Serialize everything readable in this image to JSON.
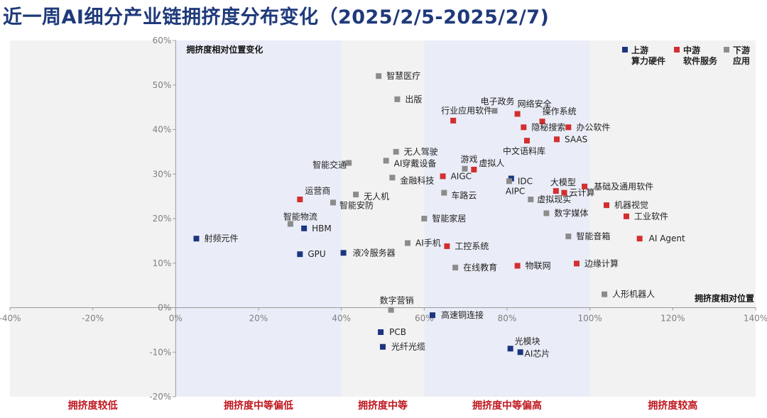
{
  "title": "近一周AI细分产业链拥挤度分布变化（2025/2/5-2025/2/7)",
  "chart_data": {
    "type": "scatter",
    "title": "近一周AI细分产业链拥挤度分布变化（2025/2/5-2025/2/7)",
    "ylabel": "拥挤度相对位置变化",
    "xlabel": "拥挤度相对位置",
    "xlim": [
      -0.4,
      1.4
    ],
    "ylim": [
      -0.2,
      0.6
    ],
    "x_ticks": [
      "-40%",
      "-20%",
      "0%",
      "20%",
      "40%",
      "60%",
      "80%",
      "100%",
      "120%",
      "140%"
    ],
    "y_ticks": [
      "-20%",
      "-10%",
      "0%",
      "10%",
      "20%",
      "30%",
      "40%",
      "50%",
      "60%"
    ],
    "grid": false,
    "legend_position": "top-right",
    "bands": [
      {
        "label": "拥挤度较低",
        "x_range": [
          -0.4,
          0.0
        ],
        "color": "#f2f2f2"
      },
      {
        "label": "拥挤度中等偏低",
        "x_range": [
          0.0,
          0.4
        ],
        "color": "#eaedf7"
      },
      {
        "label": "拥挤度中等",
        "x_range": [
          0.4,
          0.6
        ],
        "color": "#f2f2f2"
      },
      {
        "label": "拥挤度中等偏高",
        "x_range": [
          0.6,
          1.0
        ],
        "color": "#eaedf7"
      },
      {
        "label": "拥挤度较高",
        "x_range": [
          1.0,
          1.4
        ],
        "color": "#f2f2f2"
      }
    ],
    "series": [
      {
        "name": "上游\n算力硬件",
        "color": "#1b3580",
        "points": [
          {
            "label": "射频元件",
            "x": 0.05,
            "y": 0.155
          },
          {
            "label": "HBM",
            "x": 0.31,
            "y": 0.178
          },
          {
            "label": "GPU",
            "x": 0.3,
            "y": 0.12
          },
          {
            "label": "液冷服务器",
            "x": 0.405,
            "y": 0.123
          },
          {
            "label": "高速铜连接",
            "x": 0.62,
            "y": -0.017
          },
          {
            "label": "PCB",
            "x": 0.495,
            "y": -0.055
          },
          {
            "label": "光纤光缆",
            "x": 0.5,
            "y": -0.088
          },
          {
            "label": "光模块",
            "x": 0.808,
            "y": -0.092
          },
          {
            "label": "AI芯片",
            "x": 0.832,
            "y": -0.1
          },
          {
            "label": "IDC",
            "x": 0.81,
            "y": 0.29
          }
        ]
      },
      {
        "name": "中游\n软件服务",
        "color": "#d32f2f",
        "points": [
          {
            "label": "运营商",
            "x": 0.3,
            "y": 0.243
          },
          {
            "label": "AIGC",
            "x": 0.645,
            "y": 0.295
          },
          {
            "label": "虚拟人",
            "x": 0.72,
            "y": 0.31
          },
          {
            "label": "工控系统",
            "x": 0.655,
            "y": 0.138
          },
          {
            "label": "物联网",
            "x": 0.825,
            "y": 0.094
          },
          {
            "label": "行业应用软件",
            "x": 0.67,
            "y": 0.42
          },
          {
            "label": "网络安全",
            "x": 0.825,
            "y": 0.435
          },
          {
            "label": "操作系统",
            "x": 0.885,
            "y": 0.418
          },
          {
            "label": "隐秘搜索",
            "x": 0.84,
            "y": 0.405
          },
          {
            "label": "办公软件",
            "x": 0.948,
            "y": 0.405
          },
          {
            "label": "中文语料库",
            "x": 0.848,
            "y": 0.375
          },
          {
            "label": "SAAS",
            "x": 0.92,
            "y": 0.378
          },
          {
            "label": "大模型",
            "x": 0.918,
            "y": 0.262
          },
          {
            "label": "云计算",
            "x": 0.938,
            "y": 0.258
          },
          {
            "label": "基础及通用软件",
            "x": 0.987,
            "y": 0.272
          },
          {
            "label": "机器视觉",
            "x": 1.04,
            "y": 0.23
          },
          {
            "label": "工业软件",
            "x": 1.088,
            "y": 0.205
          },
          {
            "label": "AI Agent",
            "x": 1.12,
            "y": 0.155
          },
          {
            "label": "边缘计算",
            "x": 0.968,
            "y": 0.099
          }
        ]
      },
      {
        "name": "下游\n应用",
        "color": "#8c8c8c",
        "points": [
          {
            "label": "智慧医疗",
            "x": 0.49,
            "y": 0.52
          },
          {
            "label": "出版",
            "x": 0.535,
            "y": 0.468
          },
          {
            "label": "无人驾驶",
            "x": 0.532,
            "y": 0.35
          },
          {
            "label": "AI穿戴设备",
            "x": 0.508,
            "y": 0.33
          },
          {
            "label": "智能交通",
            "x": 0.418,
            "y": 0.325
          },
          {
            "label": "金融科技",
            "x": 0.523,
            "y": 0.292
          },
          {
            "label": "无人机",
            "x": 0.435,
            "y": 0.254
          },
          {
            "label": "智能安防",
            "x": 0.38,
            "y": 0.236
          },
          {
            "label": "智能物流",
            "x": 0.277,
            "y": 0.188
          },
          {
            "label": "智能家居",
            "x": 0.6,
            "y": 0.2
          },
          {
            "label": "AI手机",
            "x": 0.56,
            "y": 0.145
          },
          {
            "label": "在线教育",
            "x": 0.675,
            "y": 0.09
          },
          {
            "label": "游戏",
            "x": 0.698,
            "y": 0.312
          },
          {
            "label": "车路云",
            "x": 0.648,
            "y": 0.258
          },
          {
            "label": "电子政务",
            "x": 0.77,
            "y": 0.442
          },
          {
            "label": "AIPC",
            "x": 0.805,
            "y": 0.284
          },
          {
            "label": "虚拟现实",
            "x": 0.857,
            "y": 0.243
          },
          {
            "label": "数字媒体",
            "x": 0.895,
            "y": 0.212
          },
          {
            "label": "智能音箱",
            "x": 0.948,
            "y": 0.16
          },
          {
            "label": "人形机器人",
            "x": 1.035,
            "y": 0.03
          },
          {
            "label": "数字营销",
            "x": 0.52,
            "y": -0.005
          }
        ]
      }
    ]
  }
}
